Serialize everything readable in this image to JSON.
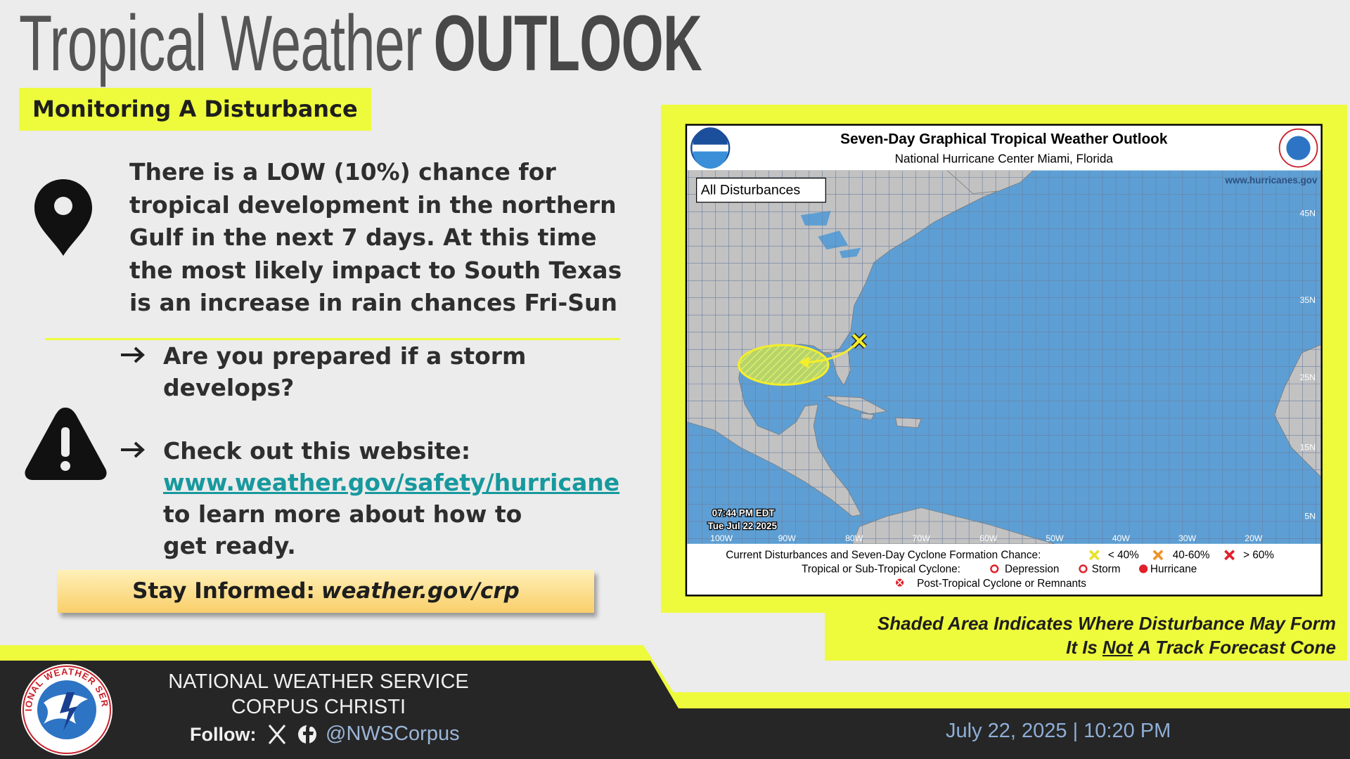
{
  "header": {
    "title_light": "Tropical Weather",
    "title_bold": "OUTLOOK",
    "badge": "Monitoring A Disturbance"
  },
  "summary": "There is a LOW (10%) chance for tropical development in the northern Gulf in the next 7 days. At this time the most likely impact to South Texas is an increase in rain chances Fri-Sun",
  "bullets": [
    {
      "text": "Are you prepared if a storm develops?"
    },
    {
      "text": "Check out this website:",
      "link": "www.weather.gov/safety/hurricane",
      "after": "to learn more about how to get ready."
    }
  ],
  "stay_informed": {
    "label": "Stay Informed:",
    "link": "weather.gov/crp"
  },
  "map": {
    "title": "Seven-Day Graphical Tropical Weather Outlook",
    "subtitle": "National Hurricane Center  Miami, Florida",
    "tab": "All Disturbances",
    "website": "www.hurricanes.gov",
    "lat_labels": [
      "45N",
      "35N",
      "25N",
      "15N",
      "5N"
    ],
    "lon_labels": [
      "100W",
      "90W",
      "80W",
      "70W",
      "60W",
      "50W",
      "40W",
      "30W",
      "20W"
    ],
    "timestamp": [
      "07:44 PM EDT",
      "Tue Jul 22 2025"
    ],
    "legend": {
      "formation_label": "Current Disturbances and Seven-Day Cyclone Formation Chance:",
      "formation_levels": [
        "< 40%",
        "40-60%",
        "> 60%"
      ],
      "cyclone_label": "Tropical or Sub-Tropical Cyclone:",
      "cyclone_types": [
        "Depression",
        "Storm",
        "Hurricane"
      ],
      "post_tropical": "Post-Tropical Cyclone or Remnants"
    }
  },
  "caption": {
    "line1": "Shaded Area Indicates Where Disturbance May Form",
    "line2_pre": "It Is",
    "line2_emph": "Not",
    "line2_post": "A Track Forecast Cone"
  },
  "footer": {
    "org": "NATIONAL WEATHER SERVICE",
    "office": "CORPUS CHRISTI",
    "follow": "Follow:",
    "handle": "@NWSCorpus",
    "datetime": "July 22, 2025 | 10:20 PM"
  }
}
